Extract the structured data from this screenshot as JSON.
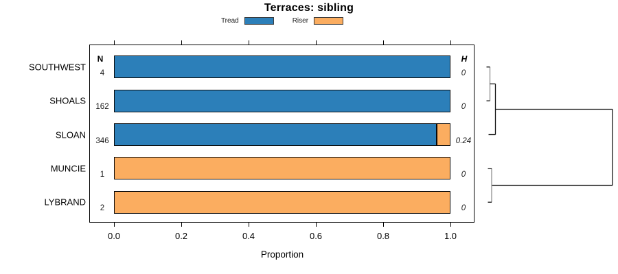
{
  "title": "Terraces: sibling",
  "legend": {
    "items": [
      {
        "label": "Tread",
        "color": "#2C7FB9"
      },
      {
        "label": "Riser",
        "color": "#FBAD60"
      }
    ]
  },
  "table": {
    "n_header": "N",
    "h_header": "H"
  },
  "axis": {
    "xlabel": "Proportion",
    "tick_labels": [
      "0.0",
      "0.2",
      "0.4",
      "0.6",
      "0.8",
      "1.0"
    ]
  },
  "rows": [
    {
      "label": "SOUTHWEST",
      "n": "4",
      "h": "0",
      "tread": 1.0,
      "riser": 0.0
    },
    {
      "label": "SHOALS",
      "n": "162",
      "h": "0",
      "tread": 1.0,
      "riser": 0.0
    },
    {
      "label": "SLOAN",
      "n": "346",
      "h": "0.24",
      "tread": 0.96,
      "riser": 0.04
    },
    {
      "label": "MUNCIE",
      "n": "1",
      "h": "0",
      "tread": 0.0,
      "riser": 1.0
    },
    {
      "label": "LYBRAND",
      "n": "2",
      "h": "0",
      "tread": 0.0,
      "riser": 1.0
    }
  ],
  "chart_data": {
    "type": "bar",
    "orientation": "horizontal",
    "stacked": true,
    "title": "Terraces: sibling",
    "xlabel": "Proportion",
    "xlim": [
      0,
      1
    ],
    "xticks": [
      0.0,
      0.2,
      0.4,
      0.6,
      0.8,
      1.0
    ],
    "grid": false,
    "legend_position": "top-center",
    "categories": [
      "SOUTHWEST",
      "SHOALS",
      "SLOAN",
      "MUNCIE",
      "LYBRAND"
    ],
    "series": [
      {
        "name": "Tread",
        "color": "#2C7FB9",
        "values": [
          1.0,
          1.0,
          0.96,
          0.0,
          0.0
        ]
      },
      {
        "name": "Riser",
        "color": "#FBAD60",
        "values": [
          0.0,
          0.0,
          0.04,
          1.0,
          1.0
        ]
      }
    ],
    "n_values": [
      4,
      162,
      346,
      1,
      2
    ],
    "h_values": [
      0,
      0,
      0.24,
      0,
      0
    ],
    "dendrogram": {
      "position": "right",
      "newick": "(((SOUTHWEST,SHOALS),SLOAN),(MUNCIE,LYBRAND))"
    }
  }
}
